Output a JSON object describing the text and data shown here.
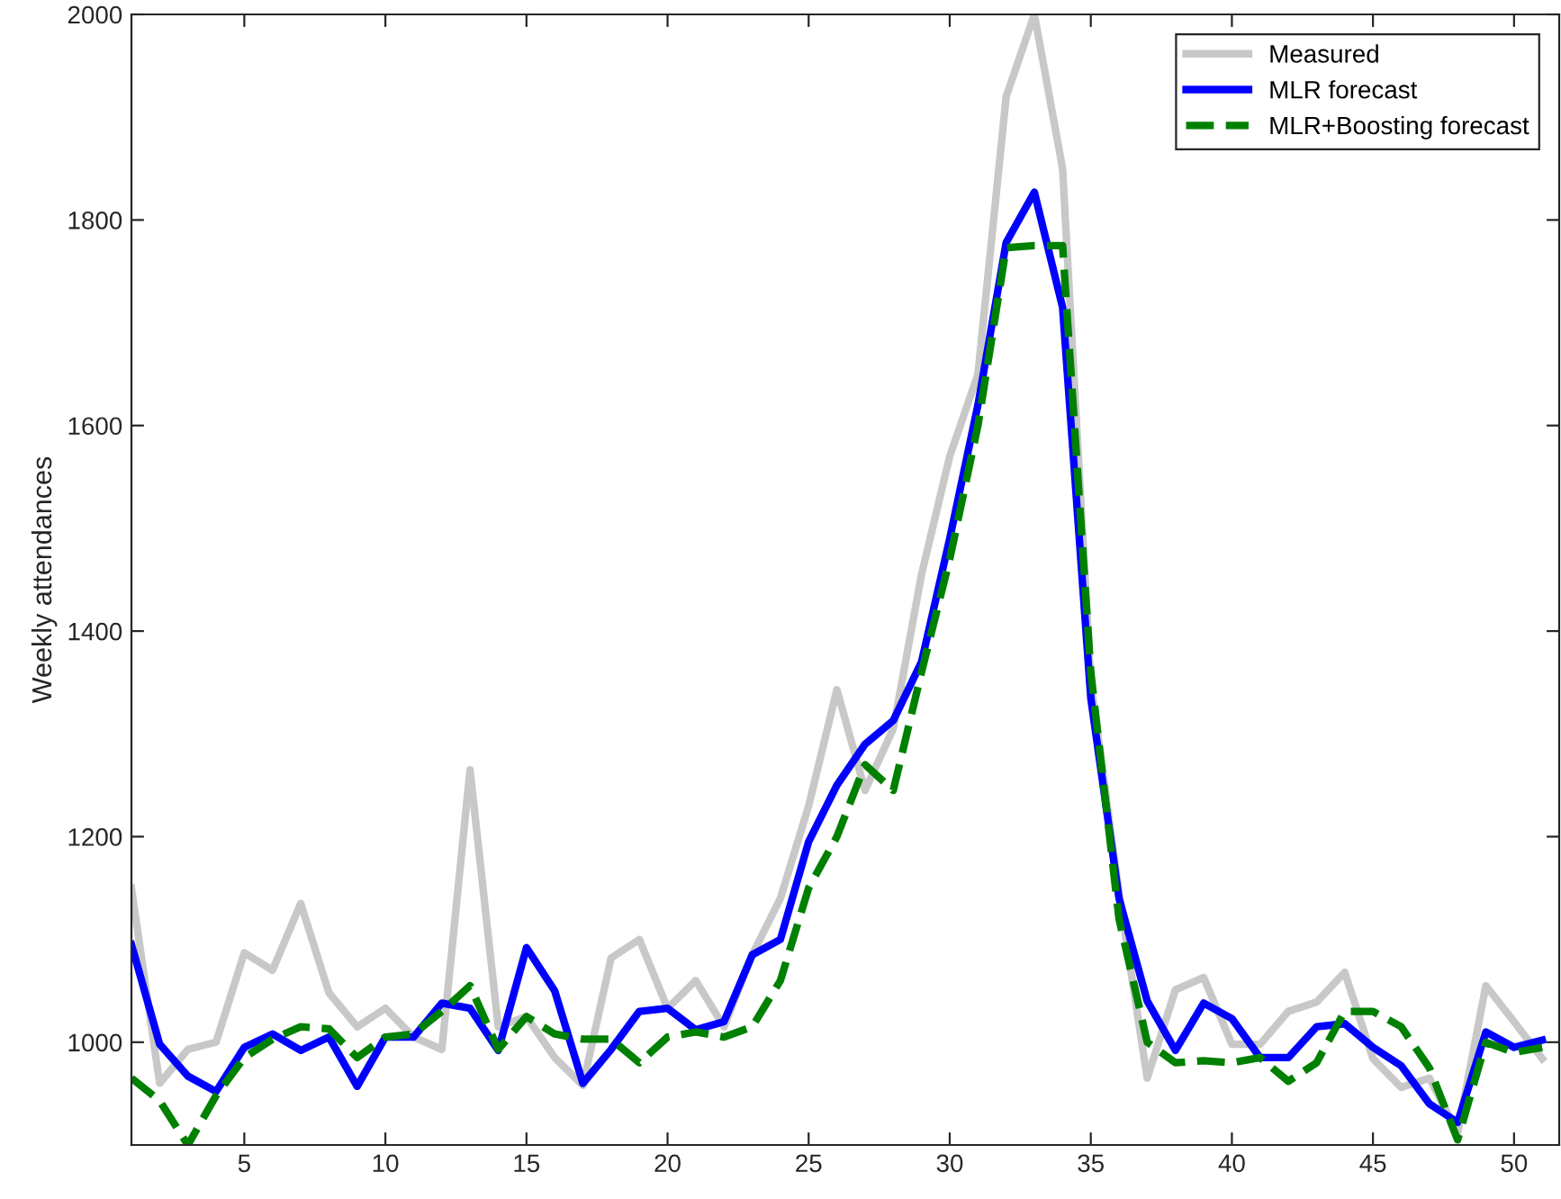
{
  "chart_data": {
    "type": "line",
    "ylabel": "Weekly attendances",
    "x": [
      1,
      2,
      3,
      4,
      5,
      6,
      7,
      8,
      9,
      10,
      11,
      12,
      13,
      14,
      15,
      16,
      17,
      18,
      19,
      20,
      21,
      22,
      23,
      24,
      25,
      26,
      27,
      28,
      29,
      30,
      31,
      32,
      33,
      34,
      35,
      36,
      37,
      38,
      39,
      40,
      41,
      42,
      43,
      44,
      45,
      46,
      47,
      48,
      49,
      50,
      51
    ],
    "series": [
      {
        "name": "Measured",
        "color": "#c8c8c8",
        "line_style": "solid",
        "values": [
          1150,
          960,
          993,
          1000,
          1087,
          1070,
          1135,
          1048,
          1015,
          1033,
          1005,
          993,
          1265,
          1015,
          1025,
          985,
          958,
          1082,
          1100,
          1033,
          1060,
          1015,
          1085,
          1140,
          1230,
          1343,
          1245,
          1305,
          1455,
          1570,
          1650,
          1920,
          2000,
          1850,
          1350,
          1145,
          965,
          1051,
          1063,
          998,
          998,
          1030,
          1039,
          1068,
          984,
          956,
          965,
          912,
          1055,
          1020,
          984
        ]
      },
      {
        "name": "MLR forecast",
        "color": "#0000ff",
        "line_style": "solid",
        "values": [
          1095,
          998,
          967,
          952,
          995,
          1008,
          992,
          1005,
          957,
          1005,
          1005,
          1038,
          1033,
          992,
          1092,
          1050,
          960,
          993,
          1030,
          1033,
          1012,
          1020,
          1085,
          1100,
          1195,
          1250,
          1290,
          1313,
          1370,
          1490,
          1620,
          1778,
          1827,
          1715,
          1335,
          1140,
          1040,
          992,
          1038,
          1023,
          985,
          985,
          1015,
          1018,
          995,
          977,
          940,
          922,
          1010,
          995,
          1002
        ]
      },
      {
        "name": "MLR+Boosting forecast",
        "color": "#008000",
        "line_style": "dashed",
        "values": [
          965,
          943,
          900,
          948,
          985,
          1003,
          1015,
          1013,
          985,
          1005,
          1008,
          1030,
          1055,
          993,
          1025,
          1008,
          1003,
          1003,
          980,
          1005,
          1010,
          1005,
          1015,
          1060,
          1150,
          1200,
          1270,
          1245,
          1360,
          1470,
          1600,
          1773,
          1775,
          1775,
          1360,
          1120,
          1000,
          980,
          982,
          980,
          985,
          962,
          980,
          1030,
          1030,
          1015,
          975,
          905,
          1000,
          990,
          995
        ]
      }
    ],
    "xlim": [
      1,
      51.6
    ],
    "ylim": [
      900,
      2000
    ],
    "xticks": [
      5,
      10,
      15,
      20,
      25,
      30,
      35,
      40,
      45,
      50
    ],
    "yticks": [
      1000,
      1200,
      1400,
      1600,
      1800,
      2000
    ],
    "grid": false,
    "legend": "top right"
  }
}
